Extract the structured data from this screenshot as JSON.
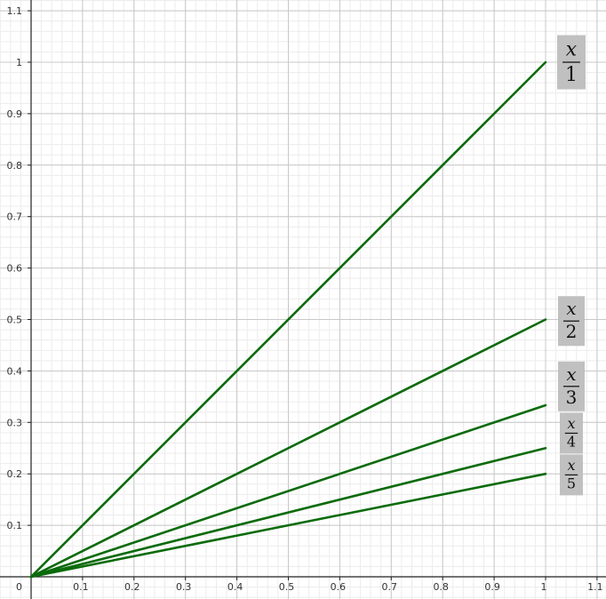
{
  "chart_data": {
    "type": "line",
    "title": "",
    "xlabel": "",
    "ylabel": "",
    "xlim": [
      0,
      1.1
    ],
    "ylim": [
      0,
      1.1
    ],
    "grid": true,
    "minor_grid": true,
    "origin_label": "0",
    "x_ticks": [
      "0.1",
      "0.2",
      "0.3",
      "0.4",
      "0.5",
      "0.6",
      "0.7",
      "0.8",
      "0.9",
      "1",
      "1.1"
    ],
    "y_ticks": [
      "0.1",
      "0.2",
      "0.3",
      "0.4",
      "0.5",
      "0.6",
      "0.7",
      "0.8",
      "0.9",
      "1",
      "1.1"
    ],
    "line_color": "#0b6b0b",
    "label_bg": "#c0c0c0",
    "series": [
      {
        "name": "x/1",
        "numerator": "x",
        "denominator": "1",
        "x": [
          0,
          1
        ],
        "y": [
          0,
          1.0
        ]
      },
      {
        "name": "x/2",
        "numerator": "x",
        "denominator": "2",
        "x": [
          0,
          1
        ],
        "y": [
          0,
          0.5
        ]
      },
      {
        "name": "x/3",
        "numerator": "x",
        "denominator": "3",
        "x": [
          0,
          1
        ],
        "y": [
          0,
          0.3333
        ]
      },
      {
        "name": "x/4",
        "numerator": "x",
        "denominator": "4",
        "x": [
          0,
          1
        ],
        "y": [
          0,
          0.25
        ]
      },
      {
        "name": "x/5",
        "numerator": "x",
        "denominator": "5",
        "x": [
          0,
          1
        ],
        "y": [
          0,
          0.2
        ]
      }
    ]
  }
}
